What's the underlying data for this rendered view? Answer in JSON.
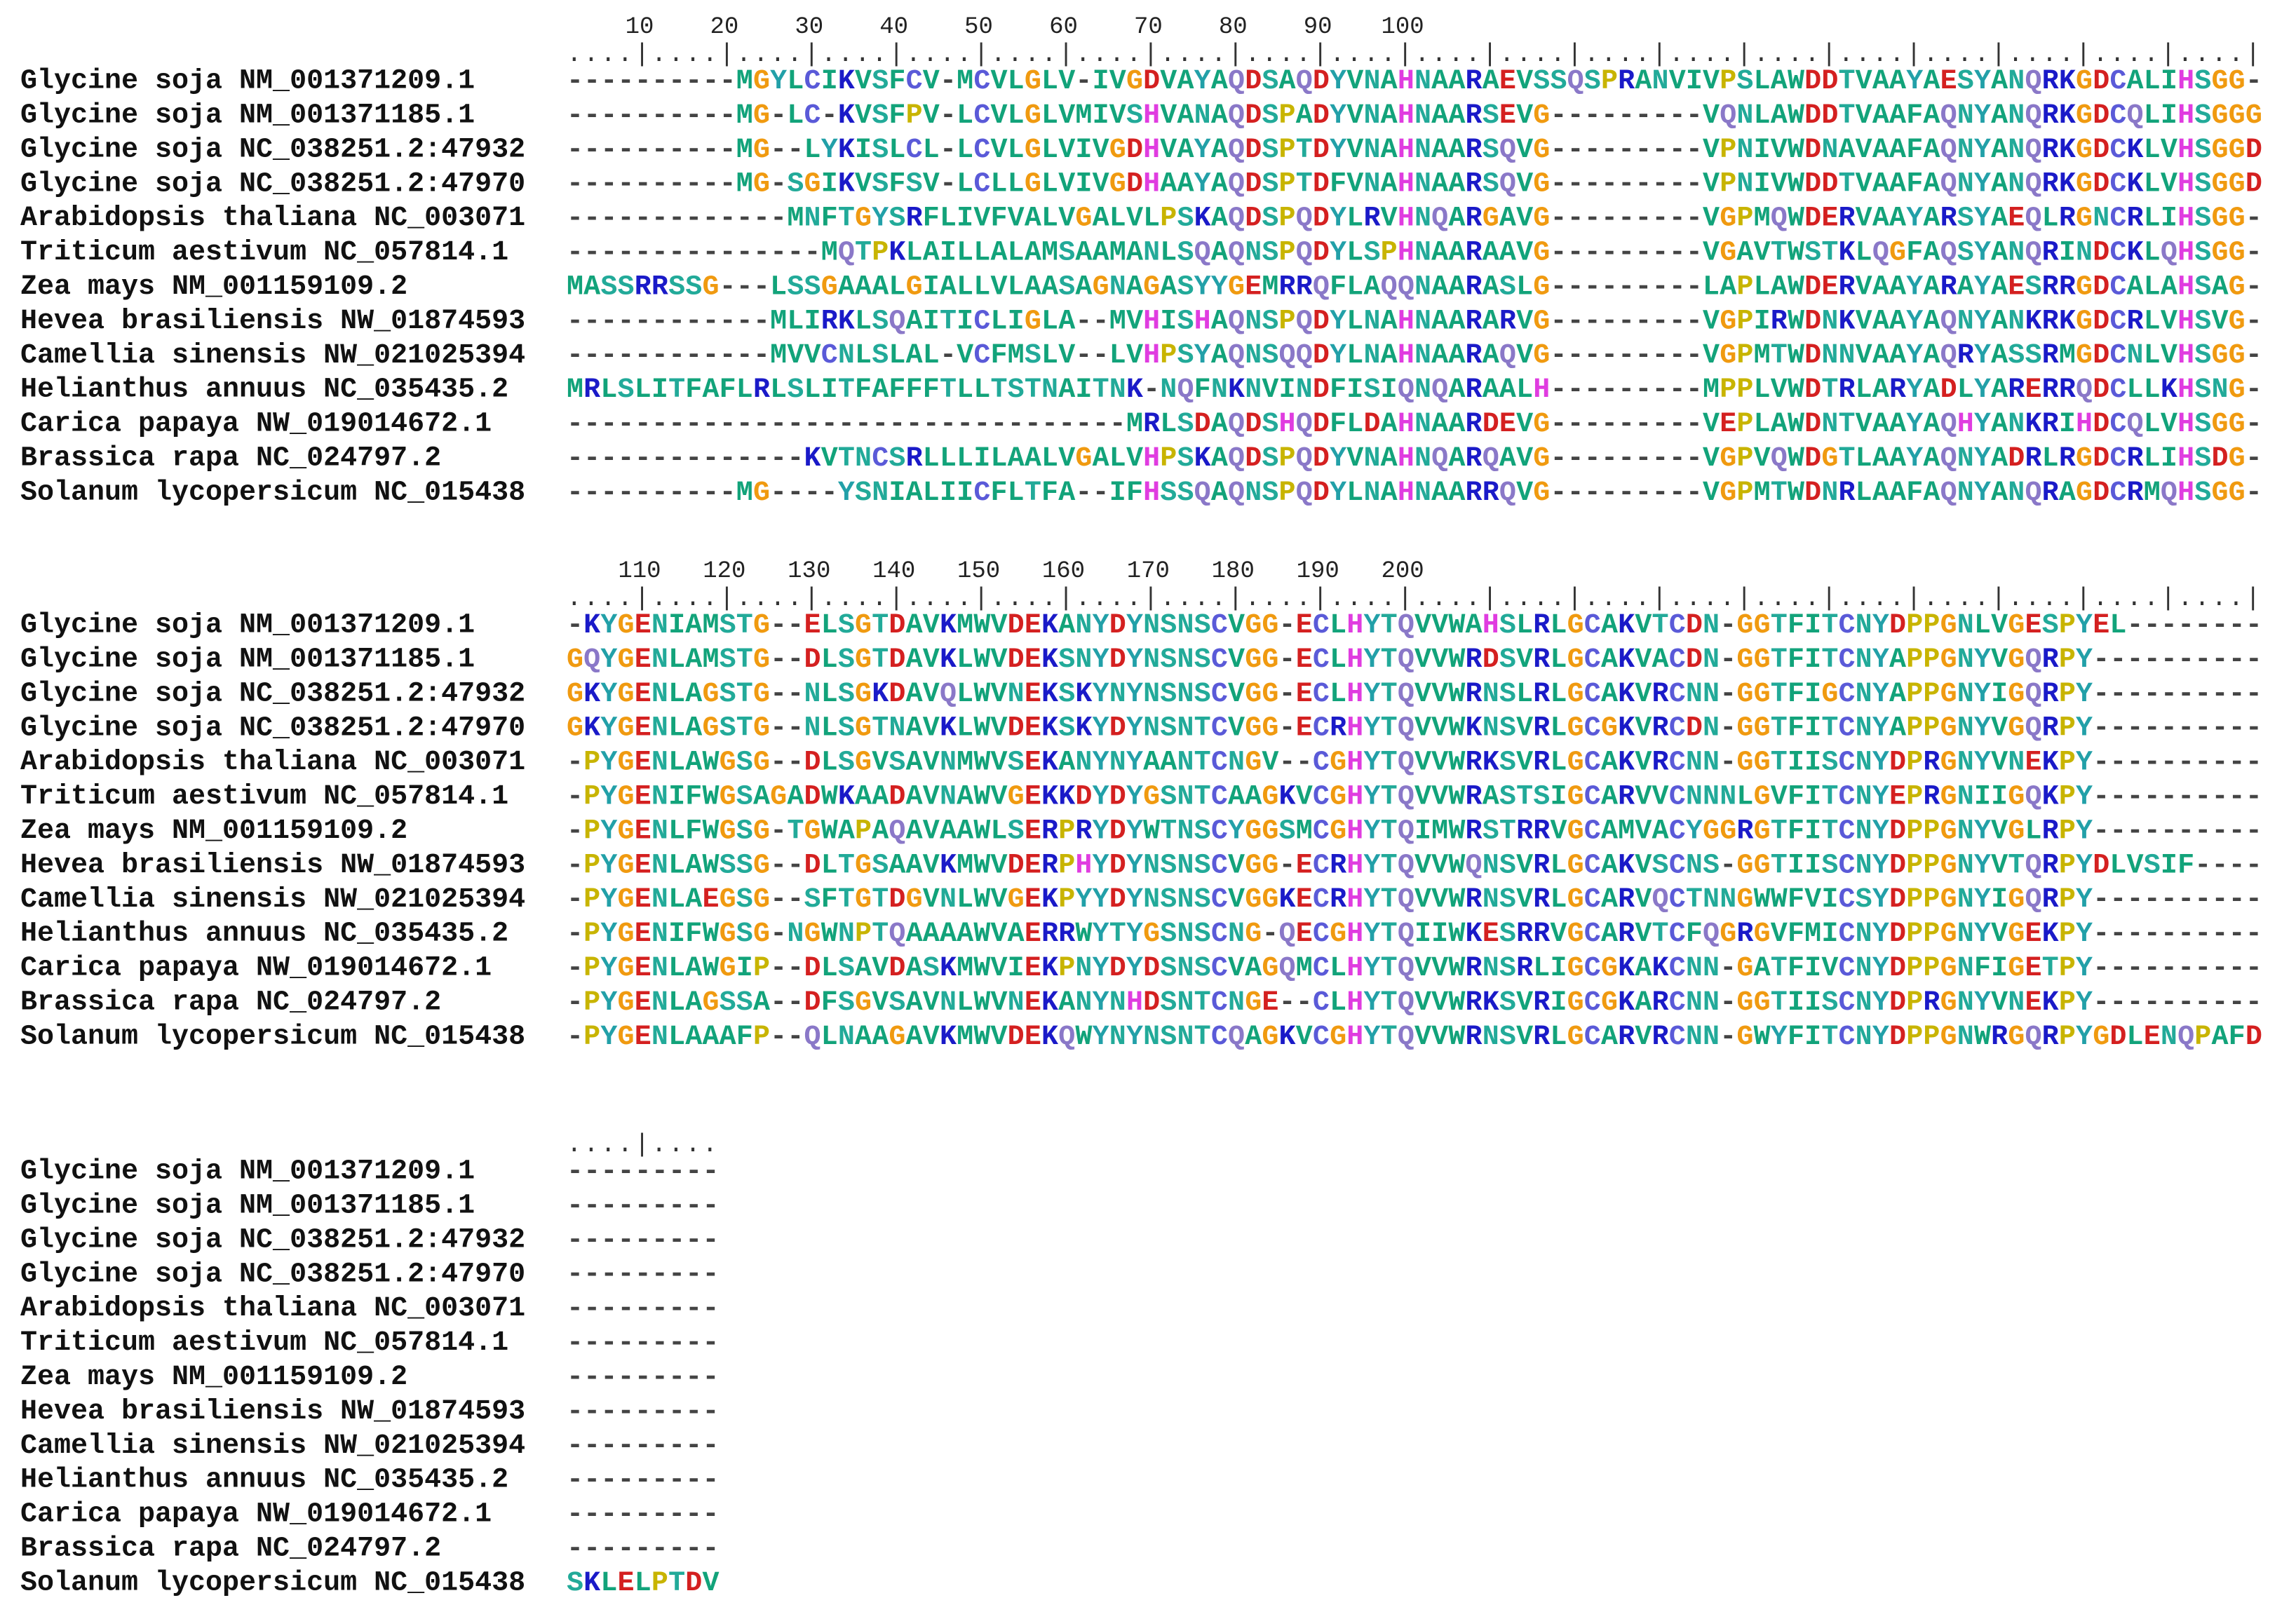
{
  "alignment": {
    "blocks": [
      {
        "ruler": "....|....|....|....|....|....|....|....|....|....|....|....|....|....|....|....|....|....|....|....|",
        "positions": [
          10,
          20,
          30,
          40,
          50,
          60,
          70,
          80,
          90,
          100
        ],
        "rows": [
          {
            "name": "Glycine soja NM_001371209.1",
            "sequence": "----------MGYLCIKVSFCV-MCVLGLV-IVGDVAYAQDSAQDYVNAHNAARAEVSSQSPRANVIVPSLAWDDTVAAYAESYANQRKGDCALIHSGG-"
          },
          {
            "name": "Glycine soja NM_001371185.1",
            "sequence": "----------MG-LC-KVSFPV-LCVLGLVMIVSHVANAQDSPADYVNAHNAARSEVG---------VQNLAWDDTVAAFAQNYANQRKGDCQLIHSGGG"
          },
          {
            "name": "Glycine soja NC_038251.2:47932",
            "sequence": "----------MG--LYKISLCL-LCVLGLVIVGDHVAYAQDSPTDYVNAHNAARSQVG---------VPNIVWDNAVAAFAQNYANQRKGDCKLVHSGGD"
          },
          {
            "name": "Glycine soja NC_038251.2:47970",
            "sequence": "----------MG-SGIKVSFSV-LCLLGLVIVGDHAAYAQDSPTDFVNAHNAARSQVG---------VPNIVWDDTVAAFAQNYANQRKGDCKLVHSGGD"
          },
          {
            "name": "Arabidopsis thaliana NC_003071",
            "sequence": "-------------MNFTGYSRFLIVFVALVGALVLPSKAQDSPQDYLRVHNQARGAVG---------VGPMQWDERVAAYARSYAEQLRGNCRLIHSGG-"
          },
          {
            "name": "Triticum aestivum NC_057814.1",
            "sequence": "---------------MQTPKLAILLALAMSAAMANLSQAQNSPQDYLSPHNAARAAVG---------VGAVTWSTKLQGFAQSYANQRINDCKLQHSGG-"
          },
          {
            "name": "Zea mays NM_001159109.2",
            "sequence": "MASSRRSSG---LSSGAAALGIALLVLAASAGNAGASYYGEMRRQFLAQQNAARASLG---------LAPLAWDERVAAYARAYAESRRGDCALAHSAG-"
          },
          {
            "name": "Hevea brasiliensis NW_01874593",
            "sequence": "------------MLIRKLSQAITICLIGLA--MVHISHAQNSPQDYLNAHNAARARVG---------VGPIRWDNKVAAYAQNYANKRKGDCRLVHSVG-"
          },
          {
            "name": "Camellia sinensis NW_021025394",
            "sequence": "------------MVVCNLSLAL-VCFMSLV--LVHPSYAQNSQQDYLNAHNAARAQVG---------VGPMTWDNNVAAYAQRYASSRMGDCNLVHSGG-"
          },
          {
            "name": "Helianthus annuus NC_035435.2",
            "sequence": "MRLSLITFAFLRLSLITFAFFFTLLTSTNAITNK-NQFNKNVINDFISIQNQARAALH---------MPPLVWDTRLARYADLYARERRQDCLLKHSNG-"
          },
          {
            "name": "Carica papaya NW_019014672.1",
            "sequence": "---------------------------------MRLSDAQDSHQDFLDAHNAARDEVG---------VEPLAWDNTVAAYAQHYANKRIHDCQLVHSGG-"
          },
          {
            "name": "Brassica rapa NC_024797.2",
            "sequence": "--------------KVTNCSRLLLILAALVGALVHPSKAQDSPQDYVNAHNQARQAVG---------VGPVQWDGTLAAYAQNYADRLRGDCRLIHSDG-"
          },
          {
            "name": "Solanum lycopersicum NC_015438",
            "sequence": "----------MG----YSNIALIICFLTFA--IFHSSQAQNSPQDYLNAHNAARRQVG---------VGPMTWDNRLAAFAQNYANQRAGDCRMQHSGG-"
          }
        ]
      },
      {
        "ruler": "....|....|....|....|....|....|....|....|....|....|....|....|....|....|....|....|....|....|....|....|",
        "positions": [
          110,
          120,
          130,
          140,
          150,
          160,
          170,
          180,
          190,
          200
        ],
        "rows": [
          {
            "name": "Glycine soja NM_001371209.1",
            "sequence": "-KYGENIAMSTG--ELSGTDAVKMWVDEKANYDYNSNSCVGG-ECLHYTQVVWAHSLRLGCAKVTCDN-GGTFITCNYDPPGNLVGESPYEL--------"
          },
          {
            "name": "Glycine soja NM_001371185.1",
            "sequence": "GQYGENLAMSTG--DLSGTDAVKLWVDEKSNYDYNSNSCVGG-ECLHYTQVVWRDSVRLGCAKVACDN-GGTFITCNYAPPGNYVGQRPY----------"
          },
          {
            "name": "Glycine soja NC_038251.2:47932",
            "sequence": "GKYGENLAGSTG--NLSGKDAVQLWVNEKSKYNYNSNSCVGG-ECLHYTQVVWRNSLRLGCAKVRCNN-GGTFIGCNYAPPGNYIGQRPY----------"
          },
          {
            "name": "Glycine soja NC_038251.2:47970",
            "sequence": "GKYGENLAGSTG--NLSGTNAVKLWVDEKSKYDYNSNTCVGG-ECRHYTQVVWKNSVRLGCGKVRCDN-GGTFITCNYAPPGNYVGQRPY----------"
          },
          {
            "name": "Arabidopsis thaliana NC_003071",
            "sequence": "-PYGENLAWGSG--DLSGVSAVNMWVSEKANYNYAANTCNGV--CGHYTQVVWRKSVRLGCAKVRCNN-GGTIISCNYDPRGNYVNEKPY----------"
          },
          {
            "name": "Triticum aestivum NC_057814.1",
            "sequence": "-PYGENIFWGSAGADWKAADAVNAWVGEKKDYDYGSNTCAAGKVCGHYTQVVWRASTSIGCARVVCNNNLGVFITCNYEPRGNIIGQKPY----------"
          },
          {
            "name": "Zea mays NM_001159109.2",
            "sequence": "-PYGENLFWGSG-TGWAPAQAVAAWLSERPRYDYWTNSCYGGSMCGHYTQIMWRSTRRVGCAMVACYGGRGTFITCNYDPPGNYVGLRPY----------"
          },
          {
            "name": "Hevea brasiliensis NW_01874593",
            "sequence": "-PYGENLAWSSG--DLTGSAAVKMWVDERPHYDYNSNSCVGG-ECRHYTQVVWQNSVRLGCAKVSCNS-GGTIISCNYDPPGNYVTQRPYDLVSIF----"
          },
          {
            "name": "Camellia sinensis NW_021025394",
            "sequence": "-PYGENLAEGSG--SFTGTDGVNLWVGEKPYYDYNSNSCVGGKECRHYTQVVWRNSVRLGCARVQCTNNGWWFVICSYDPPGNYIGQRPY----------"
          },
          {
            "name": "Helianthus annuus NC_035435.2",
            "sequence": "-PYGENIFWGSG-NGWNPTQAAAAWVAERRWYTYGSNSCNG-QECGHYTQIIWKESRRVGCARVTCFQGRGVFMICNYDPPGNYVGEKPY----------"
          },
          {
            "name": "Carica papaya NW_019014672.1",
            "sequence": "-PYGENLAWGIP--DLSAVDASKMWVIEKPNYDYDSNSCVAGQMCLHYTQVVWRNSRLIGCGKAKCNN-GATFIVCNYDPPGNFIGETPY----------"
          },
          {
            "name": "Brassica rapa NC_024797.2",
            "sequence": "-PYGENLAGSSA--DFSGVSAVNLWVNEKANYNHDSNTCNGE--CLHYTQVVWRKSVRIGCGKARCNN-GGTIISCNYDPRGNYVNEKPY----------"
          },
          {
            "name": "Solanum lycopersicum NC_015438",
            "sequence": "-PYGENLAAAFP--QLNAAGAVKMWVDEKQWYNYNSNTCQAGKVCGHYTQVVWRNSVRLGCARVRCNN-GWYFITCNYDPPGNWRGQRPYGDLENQPAFD"
          }
        ]
      },
      {
        "ruler": "....|....",
        "positions": [],
        "rows": [
          {
            "name": "Glycine soja NM_001371209.1",
            "sequence": "---------"
          },
          {
            "name": "Glycine soja NM_001371185.1",
            "sequence": "---------"
          },
          {
            "name": "Glycine soja NC_038251.2:47932",
            "sequence": "---------"
          },
          {
            "name": "Glycine soja NC_038251.2:47970",
            "sequence": "---------"
          },
          {
            "name": "Arabidopsis thaliana NC_003071",
            "sequence": "---------"
          },
          {
            "name": "Triticum aestivum NC_057814.1",
            "sequence": "---------"
          },
          {
            "name": "Zea mays NM_001159109.2",
            "sequence": "---------"
          },
          {
            "name": "Hevea brasiliensis NW_01874593",
            "sequence": "---------"
          },
          {
            "name": "Camellia sinensis NW_021025394",
            "sequence": "---------"
          },
          {
            "name": "Helianthus annuus NC_035435.2",
            "sequence": "---------"
          },
          {
            "name": "Carica papaya NW_019014672.1",
            "sequence": "---------"
          },
          {
            "name": "Brassica rapa NC_024797.2",
            "sequence": "---------"
          },
          {
            "name": "Solanum lycopersicum NC_015438",
            "sequence": "SKLELPTDV"
          }
        ]
      }
    ]
  }
}
